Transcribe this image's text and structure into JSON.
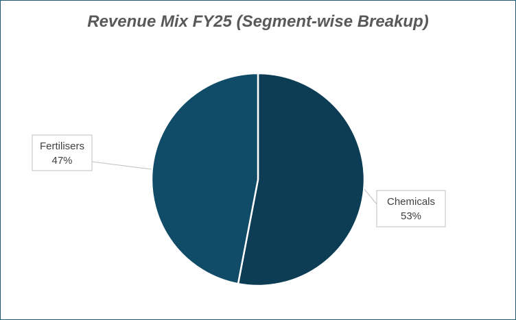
{
  "chart_data": {
    "type": "pie",
    "title": "Revenue Mix FY25 (Segment-wise Breakup)",
    "slices": [
      {
        "label": "Chemicals",
        "value": 53,
        "value_label": "53%",
        "color": "#0c3d55"
      },
      {
        "label": "Fertilisers",
        "value": 47,
        "value_label": "47%",
        "color": "#104b68"
      }
    ],
    "legend": "none",
    "data_labels": "outside with leader lines"
  }
}
